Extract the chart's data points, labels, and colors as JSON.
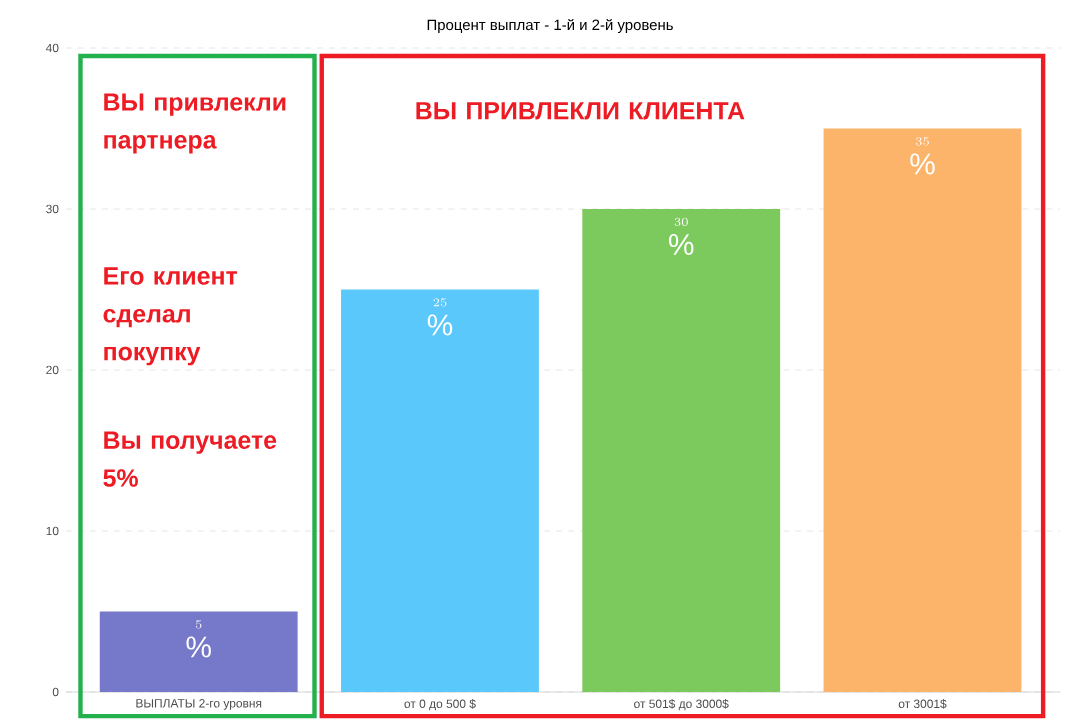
{
  "chart_data": {
    "type": "bar",
    "title": "Процент выплат - 1-й и 2-й уровень",
    "categories": [
      "ВЫПЛАТЫ 2-го уровня",
      "от 0 до 500 $",
      "от 501$ до 3000$",
      "от 3001$"
    ],
    "values": [
      5,
      25,
      30,
      35
    ],
    "colors": [
      "#7678c9",
      "#5ac8fa",
      "#7cc95e",
      "#fbb469"
    ],
    "ylim": [
      0,
      40
    ],
    "yticks": [
      0,
      10,
      20,
      30,
      40
    ],
    "grid": "y",
    "data_labels": true,
    "annotations": [
      "ВЫ  ПРИВЛЕКЛИ  КЛИЕНТА",
      "ВЫ привлекли партнера",
      "Его клиент сделал покупку",
      "Вы получаете 5%",
      {
        "text": "%",
        "x": "ВЫПЛАТЫ 2-го уровня",
        "y": 5
      },
      {
        "text": "%",
        "x": "от 0 до 500 $",
        "y": 25
      },
      {
        "text": "%",
        "x": "от 501$ до 3000$",
        "y": 30
      },
      {
        "text": "%",
        "x": "от 3001$",
        "y": 35
      }
    ]
  }
}
